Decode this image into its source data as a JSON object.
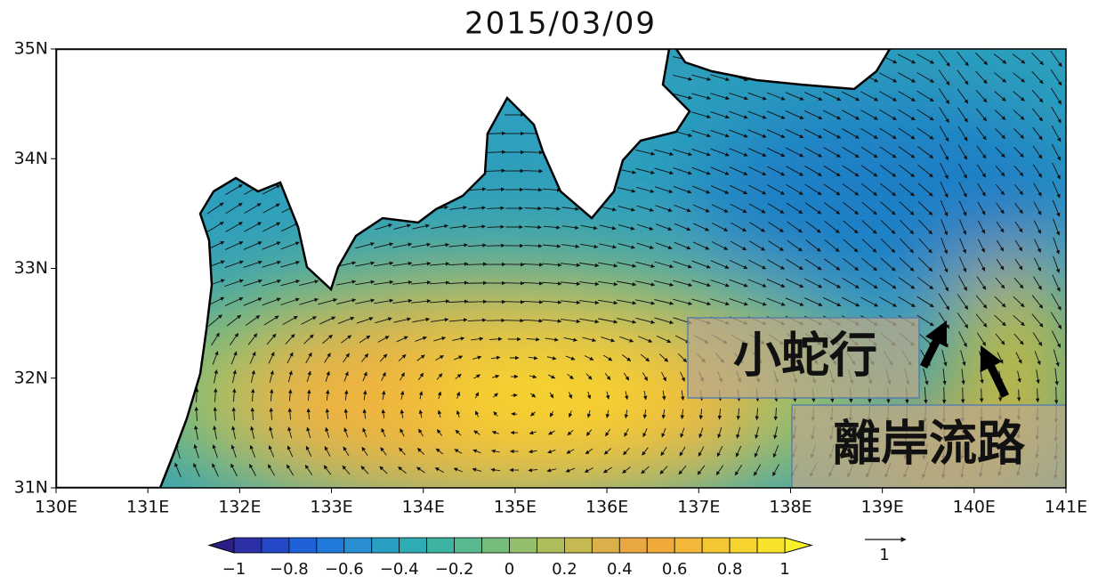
{
  "title": "2015/03/09",
  "lat_ticks": [
    "35N",
    "34N",
    "33N",
    "32N",
    "31N"
  ],
  "lon_ticks": [
    "130E",
    "131E",
    "132E",
    "133E",
    "134E",
    "135E",
    "136E",
    "137E",
    "138E",
    "139E",
    "140E",
    "141E"
  ],
  "colorbar_ticks": [
    "−1",
    "−0.8",
    "−0.6",
    "−0.4",
    "−0.2",
    "0",
    "0.2",
    "0.4",
    "0.6",
    "0.8",
    "1"
  ],
  "vector_reference": "1",
  "annotations": [
    "小蛇行",
    "離岸流路"
  ]
}
